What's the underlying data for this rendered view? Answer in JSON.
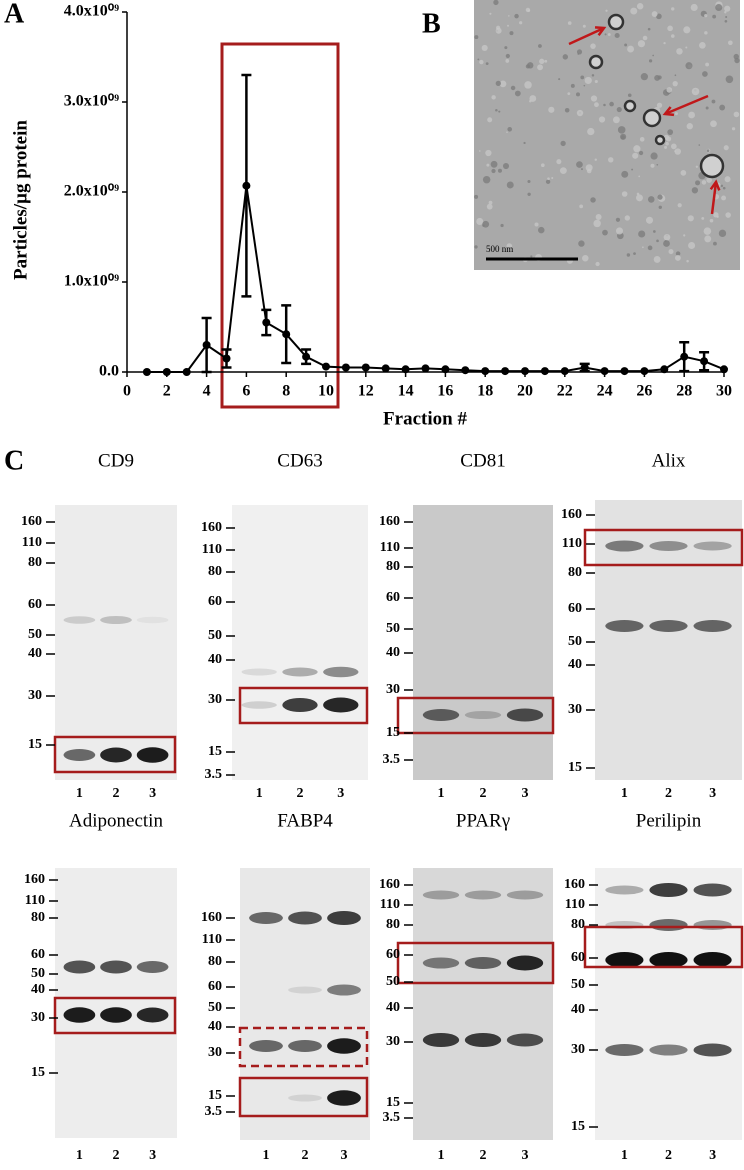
{
  "chart_data": {
    "type": "line",
    "ylabel": "Particles/µg protein",
    "xlabel": "Fraction #",
    "x": [
      1,
      2,
      3,
      4,
      5,
      6,
      7,
      8,
      9,
      10,
      11,
      12,
      13,
      14,
      15,
      16,
      17,
      18,
      19,
      20,
      21,
      22,
      23,
      24,
      25,
      26,
      27,
      28,
      29,
      30
    ],
    "values": [
      0,
      0,
      0,
      300000000,
      150000000,
      2070000000,
      550000000,
      420000000,
      170000000,
      60000000,
      50000000,
      50000000,
      40000000,
      30000000,
      40000000,
      30000000,
      20000000,
      10000000,
      10000000,
      10000000,
      10000000,
      10000000,
      50000000,
      10000000,
      10000000,
      10000000,
      30000000,
      170000000,
      120000000,
      30000000
    ],
    "errors": [
      null,
      null,
      null,
      300000000,
      100000000,
      1230000000,
      140000000,
      320000000,
      80000000,
      null,
      null,
      null,
      null,
      null,
      null,
      null,
      null,
      null,
      null,
      null,
      null,
      null,
      40000000,
      null,
      null,
      null,
      null,
      160000000,
      100000000,
      null
    ],
    "color": "#000000",
    "xlim": [
      0,
      30
    ],
    "xticks": [
      0,
      2,
      4,
      6,
      8,
      10,
      12,
      14,
      16,
      18,
      20,
      22,
      24,
      26,
      28,
      30
    ],
    "ylim": [
      0,
      4000000000
    ],
    "yticks": [
      {
        "value": 0,
        "label": "0.0"
      },
      {
        "value": 1000000000,
        "label": "1.0x10⁰⁹"
      },
      {
        "value": 2000000000,
        "label": "2.0x10⁰⁹"
      },
      {
        "value": 3000000000,
        "label": "3.0x10⁰⁹"
      },
      {
        "value": 4000000000,
        "label": "4.0x10⁰⁹"
      }
    ]
  },
  "panel_labels": [
    "A",
    "B",
    "C"
  ],
  "micrograph": {
    "scale_bar": "500 nm"
  },
  "blots": [
    {
      "title": "CD9",
      "markers": [
        160,
        110,
        80,
        60,
        50,
        40,
        30,
        15
      ],
      "lanes": [
        1,
        2,
        3
      ]
    },
    {
      "title": "CD63",
      "markers": [
        160,
        110,
        80,
        60,
        50,
        40,
        30,
        15,
        3.5
      ],
      "lanes": [
        1,
        2,
        3
      ]
    },
    {
      "title": "CD81",
      "markers": [
        160,
        110,
        80,
        60,
        50,
        40,
        30,
        15,
        3.5
      ],
      "lanes": [
        1,
        2,
        3
      ]
    },
    {
      "title": "Alix",
      "markers": [
        160,
        110,
        80,
        60,
        50,
        40,
        30,
        15
      ],
      "lanes": [
        1,
        2,
        3
      ]
    },
    {
      "title": "Adiponectin",
      "markers": [
        160,
        110,
        80,
        60,
        50,
        40,
        30,
        15
      ],
      "lanes": [
        1,
        2,
        3
      ]
    },
    {
      "title": "FABP4",
      "markers": [
        160,
        110,
        80,
        60,
        50,
        40,
        30,
        15,
        3.5
      ],
      "lanes": [
        1,
        2,
        3
      ]
    },
    {
      "title": "PPARγ",
      "markers": [
        160,
        110,
        80,
        60,
        50,
        40,
        30,
        15,
        3.5
      ],
      "lanes": [
        1,
        2,
        3
      ]
    },
    {
      "title": "Perilipin",
      "markers": [
        160,
        110,
        80,
        60,
        50,
        40,
        30,
        15
      ],
      "lanes": [
        1,
        2,
        3
      ]
    }
  ]
}
